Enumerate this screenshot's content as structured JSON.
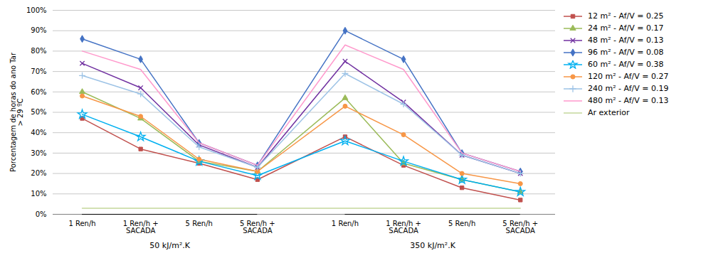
{
  "chart_data": {
    "type": "line",
    "categories": [
      "1 Ren/h",
      "1 Ren/h +\nSACADA",
      "5 Ren/h",
      "5 Ren/h +\nSACADA",
      "1 Ren/h",
      "1 Ren/h +\nSACADA",
      "5 Ren/h",
      "5 Ren/h +\nSACADA"
    ],
    "annotations": [
      "50 kJ/m².K",
      "350 kJ/m².K"
    ],
    "y_label": "Porcentagem de horas do ano Tar\n> 29 ºC",
    "series": [
      {
        "name": "12 m² - Af/V = 0.25",
        "color": "#C0504D",
        "marker": "square",
        "values": [
          47,
          32,
          25,
          17,
          38,
          24,
          13,
          7
        ]
      },
      {
        "name": "24 m² - Af/V = 0.17",
        "color": "#9BBB59",
        "marker": "triangle",
        "values": [
          60,
          47,
          26,
          21,
          57,
          25,
          17,
          11
        ]
      },
      {
        "name": "48 m² - Af/V = 0.13",
        "color": "#7030A0",
        "marker": "x",
        "values": [
          74,
          62,
          34,
          23,
          75,
          55,
          29,
          20
        ]
      },
      {
        "name": "96 m² - Af/V = 0.08",
        "color": "#4472C4",
        "marker": "diamond",
        "values": [
          86,
          76,
          35,
          24,
          90,
          76,
          30,
          21
        ]
      },
      {
        "name": "60 m² - Af/V = 0.38",
        "color": "#00B0F0",
        "marker": "star",
        "values": [
          49,
          38,
          26,
          19,
          36,
          26,
          17,
          11
        ]
      },
      {
        "name": "120 m² - Af/V = 0.27",
        "color": "#F79646",
        "marker": "circle",
        "values": [
          58,
          48,
          27,
          21,
          53,
          39,
          20,
          15
        ]
      },
      {
        "name": "240 m² - Af/V = 0.19",
        "color": "#9DC3E6",
        "marker": "plus",
        "values": [
          68,
          59,
          33,
          23,
          69,
          54,
          29,
          20
        ]
      },
      {
        "name": "480 m² - Af/V = 0.13",
        "color": "#FF99CC",
        "values": [
          80,
          71,
          35,
          24,
          83,
          71,
          30,
          21
        ]
      },
      {
        "name": "Ar exterior",
        "color": "#C4D79B",
        "values": [
          3,
          3,
          3,
          3,
          3,
          3,
          3,
          3
        ]
      }
    ],
    "ylim": [
      0,
      100
    ],
    "yticks": [
      {
        "value": 0,
        "label": "0%"
      },
      {
        "value": 10,
        "label": "10%"
      },
      {
        "value": 20,
        "label": "20%"
      },
      {
        "value": 30,
        "label": "30%"
      },
      {
        "value": 40,
        "label": "40%"
      },
      {
        "value": 50,
        "label": "50%"
      },
      {
        "value": 60,
        "label": "60%"
      },
      {
        "value": 70,
        "label": "70%"
      },
      {
        "value": 80,
        "label": "80%"
      },
      {
        "value": 90,
        "label": "90%"
      },
      {
        "value": 100,
        "label": "100%"
      }
    ],
    "grid": true,
    "legend": "upper right"
  }
}
